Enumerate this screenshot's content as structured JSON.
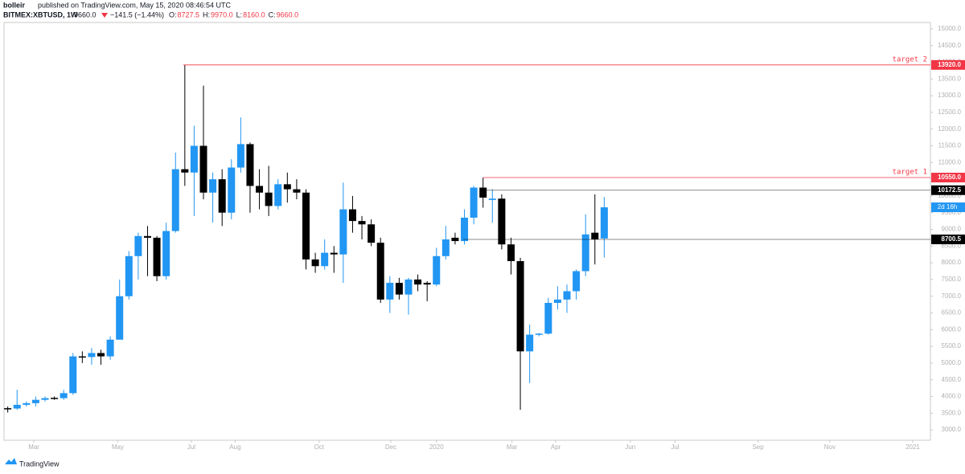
{
  "chart_data": {
    "type": "candlestick",
    "header": {
      "publisher": "bolleir",
      "published": "published on TradingView.com, May 15, 2020 08:46:54 UTC",
      "symbol": "BITMEX:XBTUSD, 1W",
      "last": "9660.0",
      "change": "−141.5 (−1.44%)",
      "ohlc": [
        {
          "key": "O:",
          "value": "8727.5"
        },
        {
          "key": "H:",
          "value": "9970.0"
        },
        {
          "key": "L:",
          "value": "8160.0"
        },
        {
          "key": "C:",
          "value": "9660.0"
        }
      ]
    },
    "up_color": "#2196f3",
    "down_color": "#000000",
    "open": [
      3650,
      3640,
      3750,
      3800,
      3900,
      3960,
      3950,
      4100,
      5200,
      5180,
      5300,
      5200,
      5700,
      7000,
      8200,
      8800,
      8750,
      7600,
      8950,
      10800,
      10700,
      11500,
      10100,
      10500,
      9500,
      10850,
      11550,
      10300,
      10100,
      9700,
      10350,
      10200,
      10100,
      8100,
      7900,
      8300,
      8250,
      9600,
      9250,
      9150,
      8600,
      6900,
      7400,
      7050,
      7500,
      7400,
      7350,
      8200,
      8750,
      8650,
      9350,
      10250,
      9880,
      9920,
      8550,
      8050,
      5350,
      5850,
      5880,
      6800,
      6900,
      7150,
      7750,
      8900,
      8727.5
    ],
    "high": [
      3700,
      4200,
      3850,
      4000,
      4000,
      4000,
      4200,
      5300,
      5350,
      5450,
      5400,
      5800,
      7500,
      8350,
      8900,
      9100,
      8800,
      9200,
      11300,
      13920,
      12100,
      13300,
      10700,
      10800,
      11100,
      12350,
      11600,
      10800,
      10900,
      10500,
      10700,
      10500,
      10200,
      8300,
      8700,
      8500,
      10400,
      10000,
      9400,
      9300,
      8750,
      7600,
      7550,
      7550,
      7650,
      7450,
      8450,
      9100,
      8900,
      9600,
      10300,
      10550,
      10200,
      10050,
      8750,
      8150,
      6150,
      5900,
      6950,
      7300,
      7350,
      7800,
      9450,
      10050,
      9970
    ],
    "low": [
      3520,
      3600,
      3700,
      3700,
      3850,
      3900,
      3900,
      4050,
      5000,
      4950,
      4950,
      5100,
      5700,
      6900,
      7500,
      7600,
      7450,
      7500,
      8900,
      10300,
      9400,
      9900,
      9200,
      9100,
      9300,
      10700,
      9500,
      9600,
      9400,
      9600,
      9800,
      9900,
      7800,
      7700,
      7800,
      7700,
      7400,
      8900,
      8700,
      8500,
      6800,
      6500,
      6900,
      6450,
      7150,
      6850,
      7300,
      8100,
      8550,
      8550,
      9150,
      9650,
      9200,
      8400,
      7650,
      3600,
      4400,
      5800,
      5850,
      6600,
      6500,
      6900,
      7600,
      7950,
      8160
    ],
    "close": [
      3640,
      3750,
      3800,
      3900,
      3950,
      3950,
      4100,
      5200,
      5180,
      5300,
      5200,
      5700,
      7000,
      8200,
      8800,
      8750,
      7600,
      8950,
      10800,
      10700,
      11500,
      10100,
      10500,
      9500,
      10850,
      11550,
      10300,
      10100,
      9700,
      10350,
      10200,
      10100,
      8100,
      7900,
      8300,
      8250,
      9600,
      9250,
      9150,
      8600,
      6900,
      7400,
      7050,
      7500,
      7350,
      7350,
      8200,
      8700,
      8650,
      9350,
      10250,
      9950,
      9920,
      8550,
      8050,
      5350,
      5850,
      5880,
      6800,
      6900,
      7150,
      7750,
      8850,
      8700,
      9660
    ],
    "ylim": [
      2690,
      15190
    ],
    "yticks": [
      {
        "value": 3000,
        "label": "3000.0"
      },
      {
        "value": 3500,
        "label": "3500.0"
      },
      {
        "value": 4000,
        "label": "4000.0"
      },
      {
        "value": 4500,
        "label": "4500.0"
      },
      {
        "value": 5000,
        "label": "5000.0"
      },
      {
        "value": 5500,
        "label": "5500.0"
      },
      {
        "value": 6000,
        "label": "6000.0"
      },
      {
        "value": 6500,
        "label": "6500.0"
      },
      {
        "value": 7000,
        "label": "7000.0"
      },
      {
        "value": 7500,
        "label": "7500.0"
      },
      {
        "value": 8000,
        "label": "8000.0"
      },
      {
        "value": 8500,
        "label": "8500.0"
      },
      {
        "value": 9000,
        "label": "9000.0"
      },
      {
        "value": 9500,
        "label": "9500.0"
      },
      {
        "value": 10000,
        "label": "10000.0"
      },
      {
        "value": 10500,
        "label": "10500.0"
      },
      {
        "value": 11000,
        "label": "11000.0"
      },
      {
        "value": 11500,
        "label": "11500.0"
      },
      {
        "value": 12000,
        "label": "12000.0"
      },
      {
        "value": 12500,
        "label": "12500.0"
      },
      {
        "value": 13000,
        "label": "13000.0"
      },
      {
        "value": 13500,
        "label": "13500.0"
      },
      {
        "value": 14000,
        "label": "14000.0"
      },
      {
        "value": 14500,
        "label": "14500.0"
      },
      {
        "value": 15000,
        "label": "15000.0"
      }
    ],
    "xlim": [
      -0.4,
      99
    ],
    "xticks": [
      {
        "value": 2.8,
        "label": "Mar"
      },
      {
        "value": 11.8,
        "label": "May"
      },
      {
        "value": 19.7,
        "label": "Jul"
      },
      {
        "value": 24.4,
        "label": "Aug"
      },
      {
        "value": 33.4,
        "label": "Oct"
      },
      {
        "value": 41.1,
        "label": "Dec"
      },
      {
        "value": 46.0,
        "label": "2020"
      },
      {
        "value": 54.1,
        "label": "Mar"
      },
      {
        "value": 58.8,
        "label": "Apr"
      },
      {
        "value": 66.8,
        "label": "Jun"
      },
      {
        "value": 71.6,
        "label": "Jul"
      },
      {
        "value": 80.5,
        "label": "Sep"
      },
      {
        "value": 88.2,
        "label": "Nov"
      },
      {
        "value": 97.1,
        "label": "2021"
      }
    ],
    "levels": [
      {
        "value": 13920,
        "label": "13920.0",
        "text": "target 2",
        "color": "#f23645"
      },
      {
        "value": 10550,
        "label": "10550.0",
        "text": "target 1",
        "color": "#f23645"
      },
      {
        "value": 10172.5,
        "label": "10172.5",
        "color": "#000000"
      },
      {
        "value": 8700.5,
        "label": "8700.5",
        "color": "#000000"
      }
    ],
    "countdown": {
      "value": 9660,
      "label": "2d 16h",
      "color": "#2196f3"
    },
    "footer": "TradingView"
  }
}
